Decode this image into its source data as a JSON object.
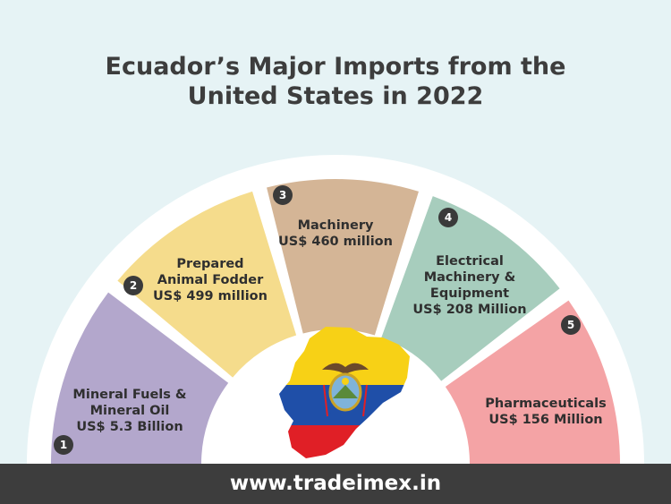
{
  "title": {
    "line1": "Ecuador’s Major Imports from the",
    "line2": "United States in 2022"
  },
  "colors": {
    "background": "#e6f3f5",
    "footer": "#3d3d3d",
    "segment_1": "#b3a7cc",
    "segment_2": "#f5dc8c",
    "segment_3": "#d4b596",
    "segment_4": "#a7cdbd",
    "segment_5": "#f4a3a5",
    "flag_yellow": "#f7d116",
    "flag_blue": "#1f4fa8",
    "flag_red": "#e01f26"
  },
  "items": [
    {
      "number": "1",
      "lines": [
        "Mineral Fuels &",
        "Mineral Oil",
        "US$ 5.3 Billion"
      ]
    },
    {
      "number": "2",
      "lines": [
        "Prepared",
        "Animal Fodder",
        "US$ 499 million"
      ]
    },
    {
      "number": "3",
      "lines": [
        "Machinery",
        "US$ 460 million"
      ]
    },
    {
      "number": "4",
      "lines": [
        "Electrical",
        "Machinery &",
        "Equipment",
        "US$ 208 Million"
      ]
    },
    {
      "number": "5",
      "lines": [
        "Pharmaceuticals",
        "US$ 156 Million"
      ]
    }
  ],
  "center_graphic": "ecuador-flag-map",
  "footer": {
    "url": "www.tradeimex.in"
  }
}
